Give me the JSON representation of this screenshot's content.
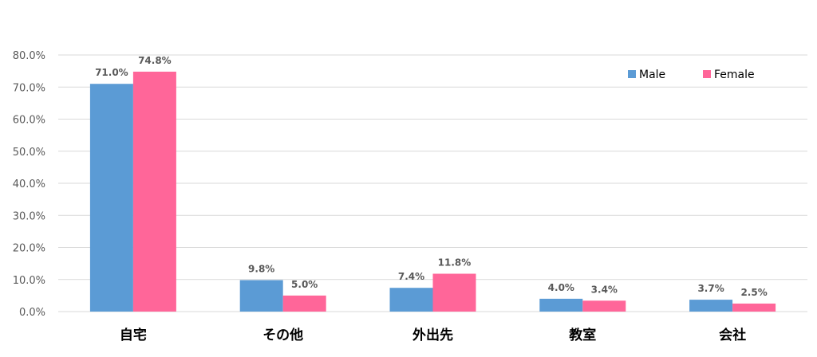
{
  "colors": {
    "male": "#5b9bd5",
    "female": "#ff6699",
    "grid": "#d9d9d9",
    "axis_text": "#595959"
  },
  "chart_data": {
    "type": "bar",
    "categories": [
      "自宅",
      "その他",
      "外出先",
      "教室",
      "会社"
    ],
    "series": [
      {
        "name": "Male",
        "values": [
          71.0,
          9.8,
          7.4,
          4.0,
          3.7
        ],
        "labels": [
          "71.0%",
          "9.8%",
          "7.4%",
          "4.0%",
          "3.7%"
        ]
      },
      {
        "name": "Female",
        "values": [
          74.8,
          5.0,
          11.8,
          3.4,
          2.5
        ],
        "labels": [
          "74.8%",
          "5.0%",
          "11.8%",
          "3.4%",
          "2.5%"
        ]
      }
    ],
    "y_ticks": [
      "0.0%",
      "10.0%",
      "20.0%",
      "30.0%",
      "40.0%",
      "50.0%",
      "60.0%",
      "70.0%",
      "80.0%"
    ],
    "ylim": [
      0,
      80
    ],
    "grid": true,
    "legend_position": "top-right"
  }
}
